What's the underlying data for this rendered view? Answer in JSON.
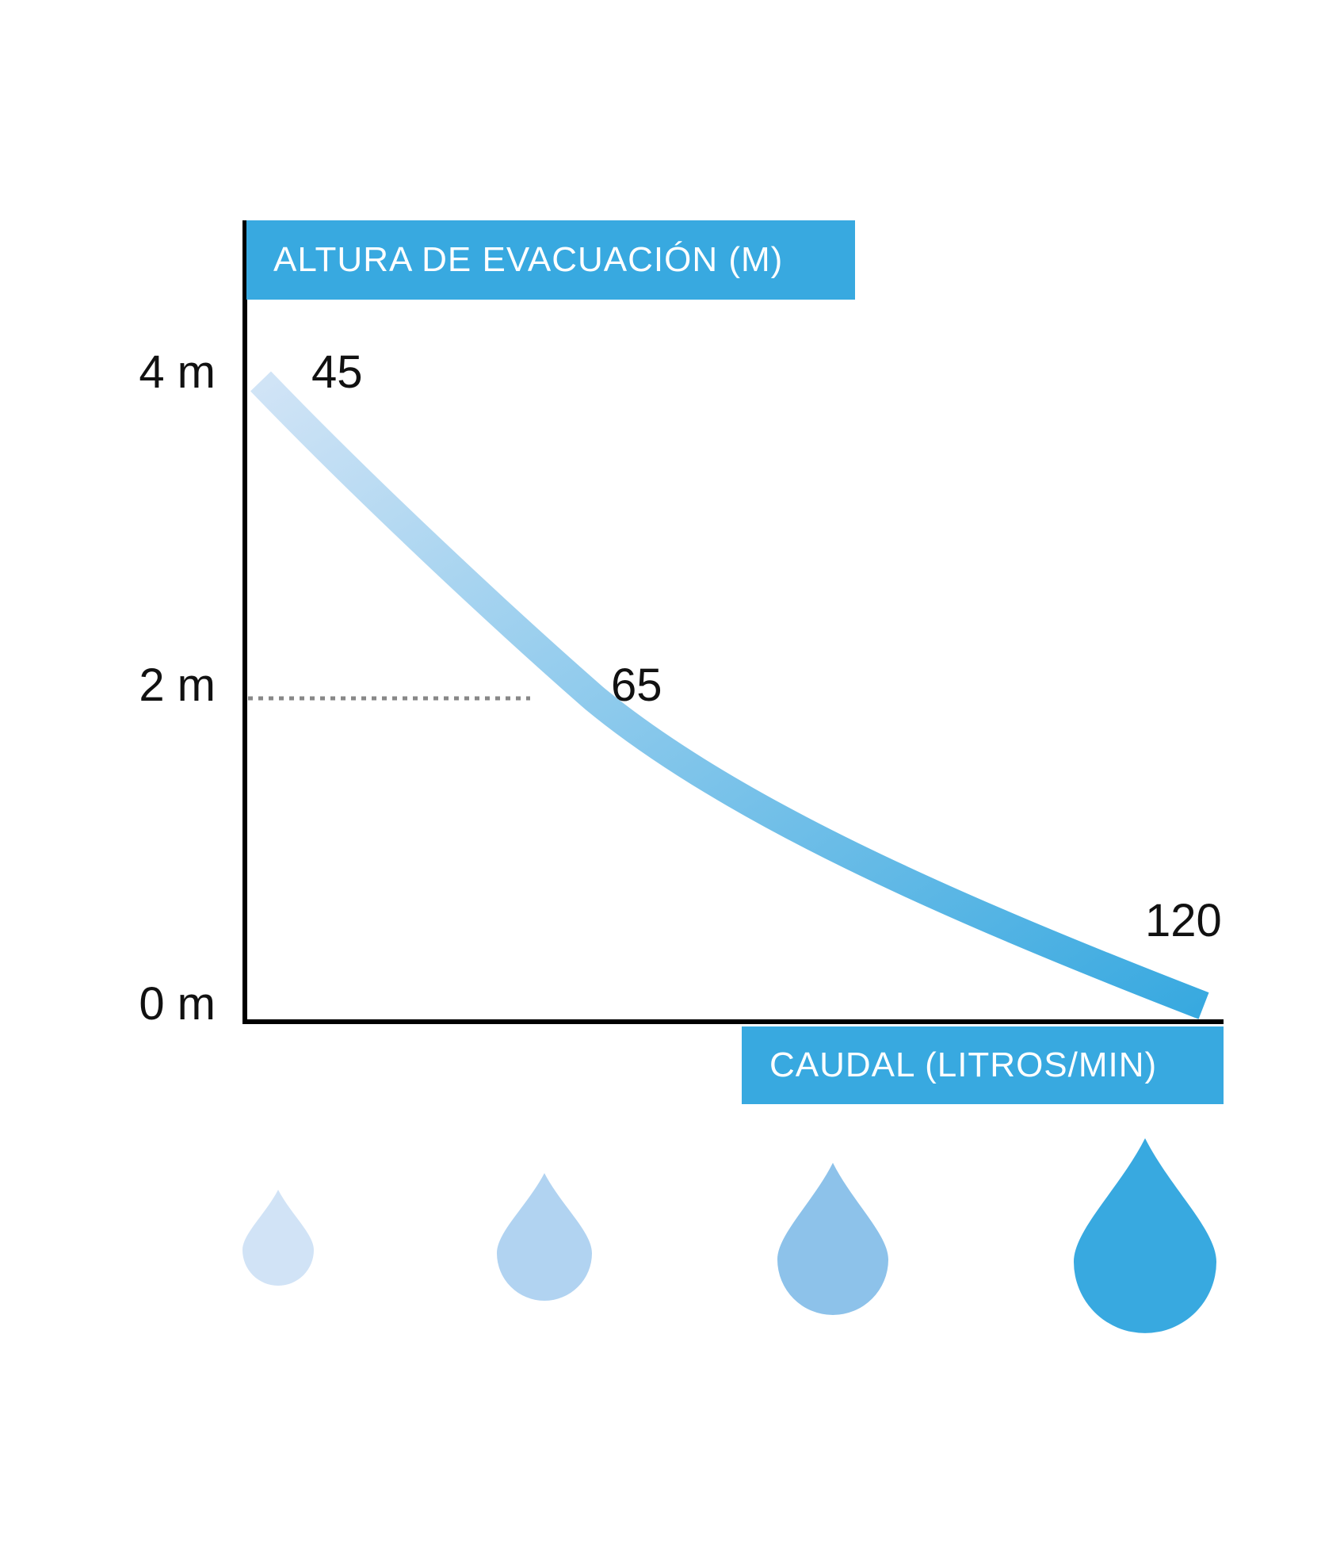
{
  "chart_data": {
    "type": "line",
    "title": "",
    "ylabel": "ALTURA DE EVACUACIÓN (M)",
    "xlabel": "CAUDAL (LITROS/MIN)",
    "y_ticks": [
      {
        "value": 4,
        "label": "4 m"
      },
      {
        "value": 2,
        "label": "2 m"
      },
      {
        "value": 0,
        "label": "0 m"
      }
    ],
    "ylim": [
      0,
      4
    ],
    "points": [
      {
        "x": 45,
        "y": 4,
        "label": "45"
      },
      {
        "x": 65,
        "y": 2,
        "label": "65"
      },
      {
        "x": 120,
        "y": 0,
        "label": "120"
      }
    ],
    "reference_line_y": 2,
    "grid": false,
    "gradient_colors": [
      "#d1e4f6",
      "#38a9e0"
    ],
    "drop_colors": [
      "#d1e3f6",
      "#b1d3f1",
      "#8dc2ea",
      "#38a9e0"
    ]
  }
}
